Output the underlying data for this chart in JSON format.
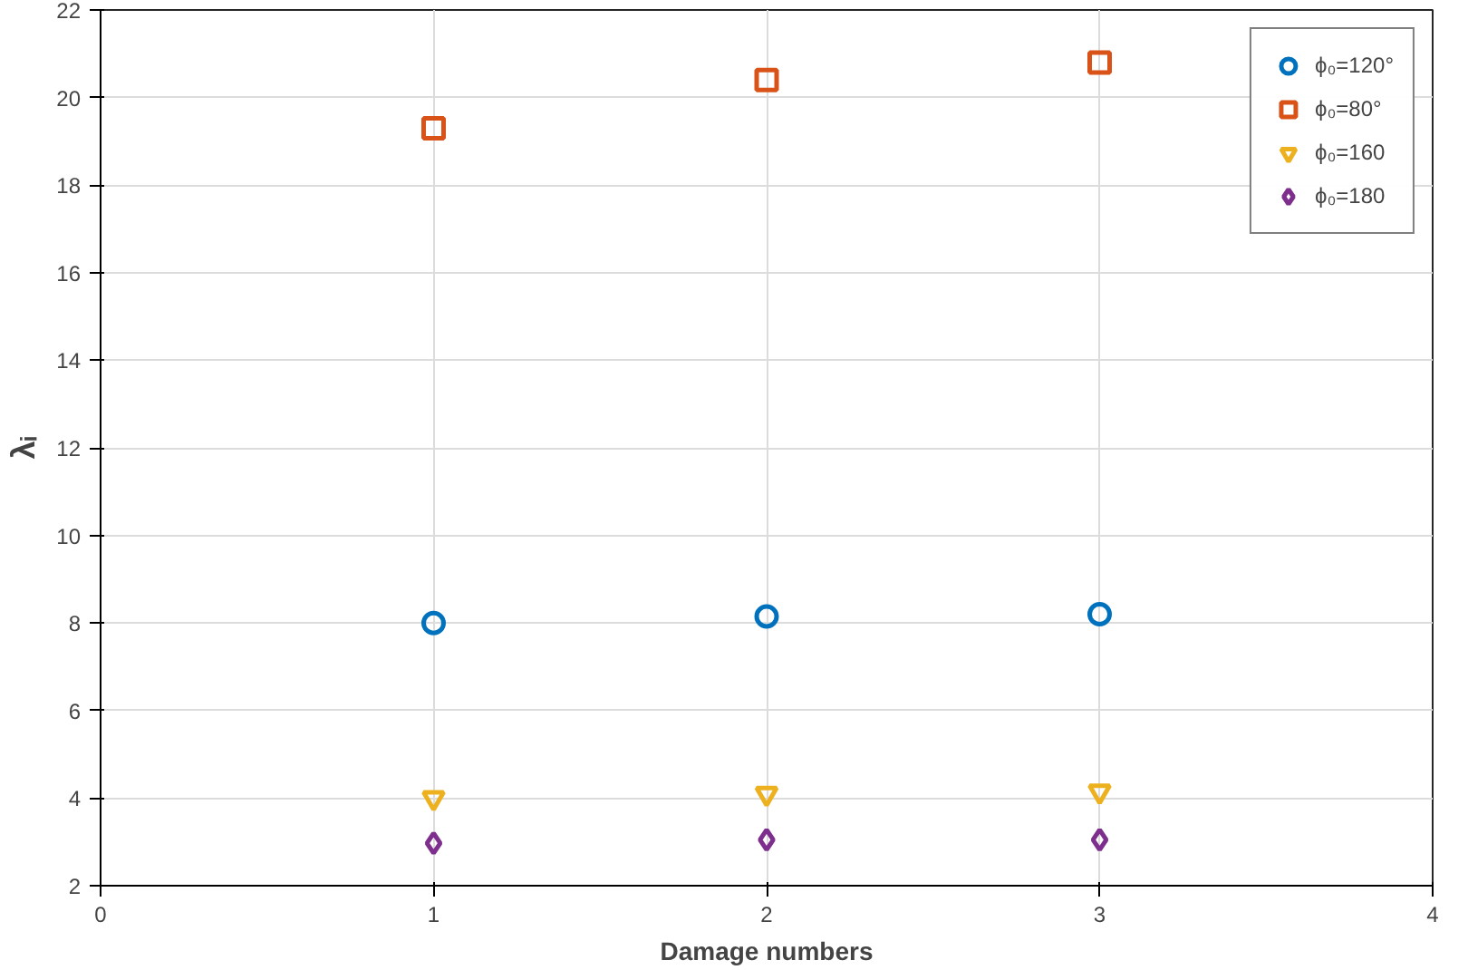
{
  "chart_data": {
    "type": "scatter",
    "xlabel": "Damage numbers",
    "ylabel": "λᵢ",
    "x": [
      1,
      2,
      3
    ],
    "series": [
      {
        "name": "ϕ₀=120°",
        "color": "#0072bd",
        "marker": "circle",
        "values": [
          8.0,
          8.15,
          8.2
        ]
      },
      {
        "name": "ϕ₀=80°",
        "color": "#d95319",
        "marker": "square",
        "values": [
          19.3,
          20.4,
          20.8
        ]
      },
      {
        "name": "ϕ₀=160",
        "color": "#edb120",
        "marker": "triangle",
        "values": [
          4.0,
          4.1,
          4.15
        ]
      },
      {
        "name": "ϕ₀=180",
        "color": "#7e2f8e",
        "marker": "diamond",
        "values": [
          2.97,
          3.05,
          3.05
        ]
      }
    ],
    "xlim": [
      0,
      4
    ],
    "xticks": [
      0,
      1,
      2,
      3,
      4
    ],
    "ylim": [
      2,
      22
    ],
    "yticks": [
      2,
      4,
      6,
      8,
      10,
      12,
      14,
      16,
      18,
      20,
      22
    ],
    "grid": true,
    "legend": "top right"
  }
}
